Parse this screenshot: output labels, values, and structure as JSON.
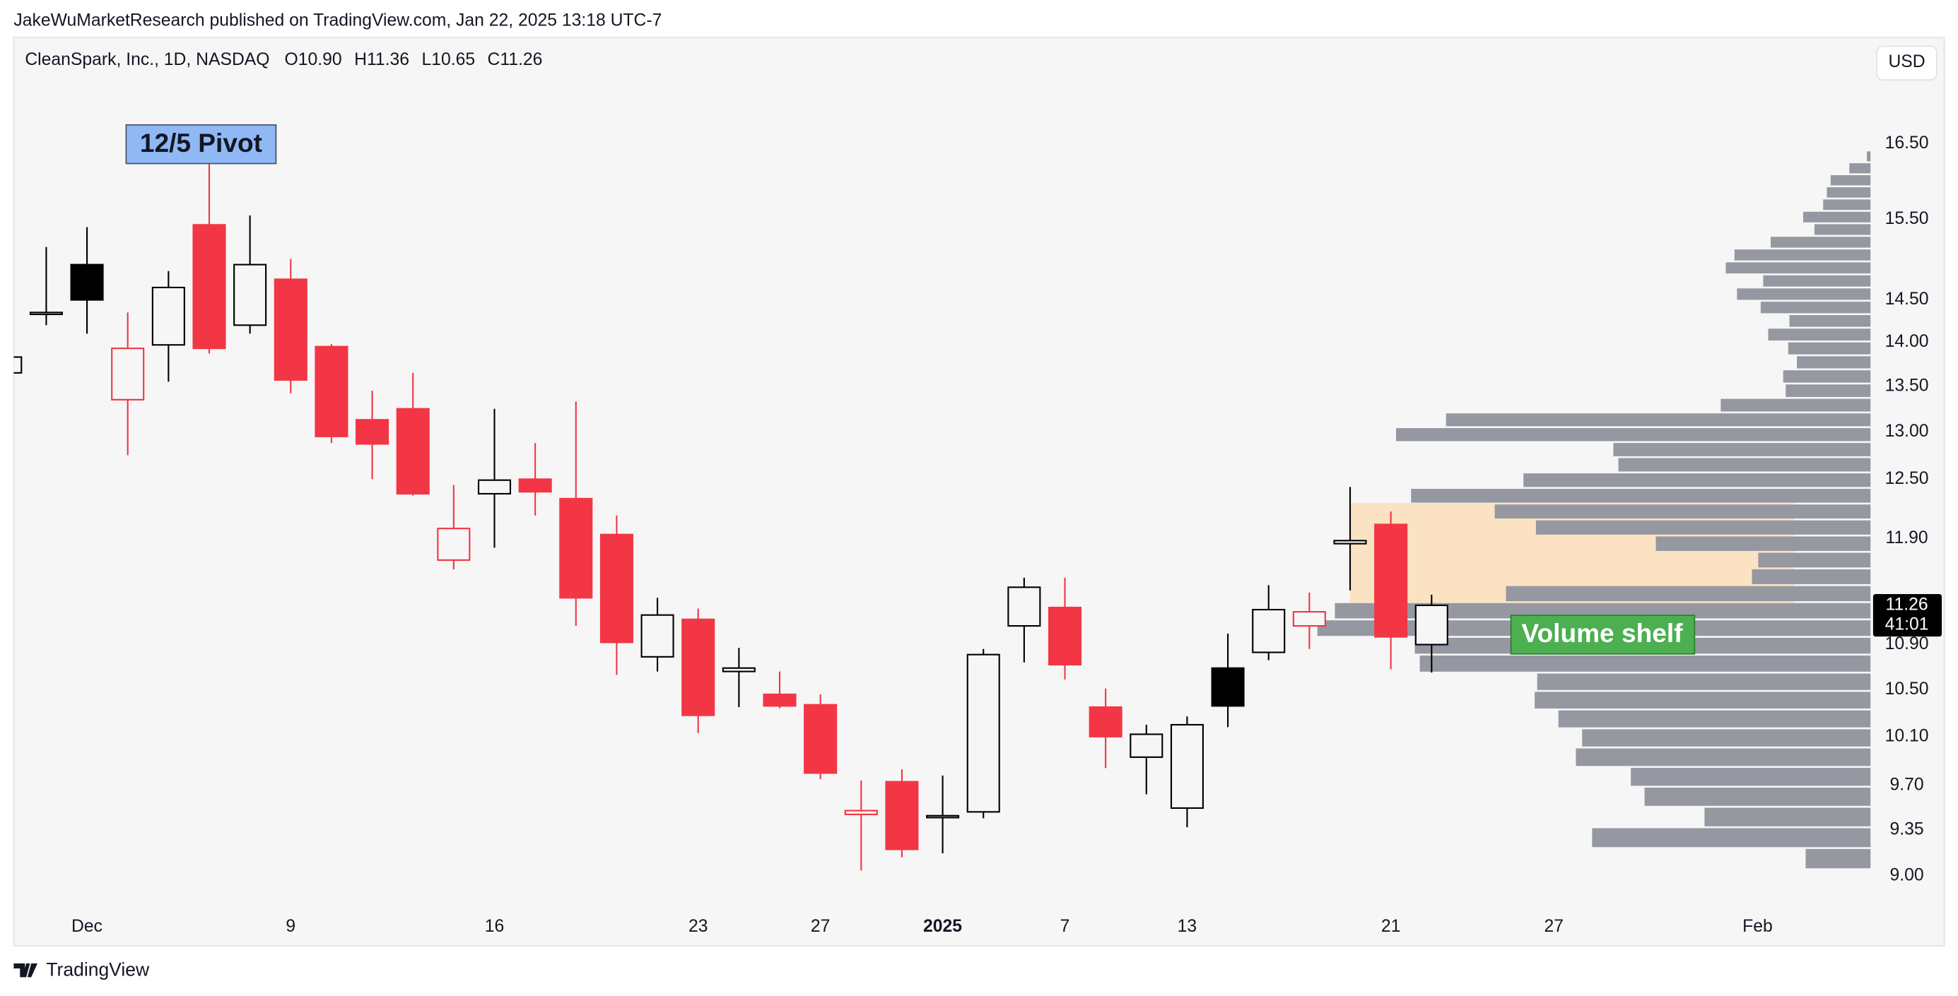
{
  "header": {
    "published": "JakeWuMarketResearch published on TradingView.com, Jan 22, 2025 13:18 UTC-7"
  },
  "chart_data": {
    "type": "candlestick",
    "title": "CleanSpark, Inc., 1D, NASDAQ",
    "ohlc_legend": [
      {
        "key": "O",
        "value": "10.90"
      },
      {
        "key": "H",
        "value": "11.36"
      },
      {
        "key": "L",
        "value": "10.65"
      },
      {
        "key": "C",
        "value": "11.26"
      }
    ],
    "currency": "USD",
    "categories": [
      null,
      null,
      "Dec",
      null,
      null,
      null,
      null,
      "9",
      null,
      null,
      null,
      null,
      "16",
      null,
      null,
      null,
      null,
      "23",
      null,
      null,
      "27",
      null,
      null,
      "2025",
      null,
      null,
      "7",
      null,
      null,
      "13",
      null,
      null,
      null,
      null,
      "21",
      null,
      null,
      null,
      "27",
      null,
      null,
      null,
      null,
      "Feb"
    ],
    "open": [
      13.65,
      14.33,
      14.93,
      13.35,
      13.97,
      15.43,
      14.2,
      14.75,
      13.95,
      13.13,
      13.25,
      11.69,
      12.35,
      12.5,
      12.3,
      11.94,
      10.79,
      11.13,
      10.66,
      10.46,
      10.37,
      9.47,
      9.73,
      9.45,
      9.49,
      11.07,
      11.24,
      10.35,
      9.93,
      9.52,
      10.69,
      10.83,
      11.07,
      11.85,
      12.04,
      10.9,
      null,
      null,
      null,
      null,
      null,
      null,
      null,
      null
    ],
    "high": [
      13.85,
      15.15,
      15.4,
      14.35,
      14.85,
      16.23,
      15.55,
      15.0,
      13.98,
      13.45,
      13.65,
      12.44,
      13.25,
      12.88,
      13.33,
      12.13,
      11.33,
      11.23,
      10.87,
      10.66,
      10.46,
      9.74,
      9.83,
      9.78,
      10.86,
      11.52,
      11.52,
      10.51,
      10.2,
      10.27,
      11.0,
      11.45,
      11.38,
      12.42,
      12.17,
      11.36,
      null,
      null,
      null,
      null,
      null,
      null,
      null,
      null
    ],
    "low": [
      13.63,
      14.2,
      14.1,
      12.75,
      13.55,
      13.87,
      14.1,
      13.42,
      12.88,
      12.5,
      12.33,
      11.6,
      11.81,
      12.13,
      11.07,
      10.63,
      10.66,
      10.13,
      10.35,
      10.34,
      9.75,
      9.04,
      9.14,
      9.17,
      9.44,
      10.74,
      10.59,
      9.84,
      9.63,
      9.37,
      10.18,
      10.76,
      10.86,
      11.4,
      10.68,
      10.65,
      null,
      null,
      null,
      null,
      null,
      null,
      null,
      null
    ],
    "close": [
      13.83,
      14.35,
      14.5,
      13.93,
      14.65,
      13.93,
      14.93,
      13.57,
      12.95,
      12.87,
      12.35,
      12.0,
      12.49,
      12.37,
      11.33,
      10.92,
      11.17,
      10.28,
      10.69,
      10.36,
      9.8,
      9.5,
      9.2,
      9.46,
      10.81,
      11.43,
      10.72,
      10.1,
      10.12,
      10.2,
      10.36,
      11.22,
      11.2,
      11.88,
      10.97,
      11.26,
      null,
      null,
      null,
      null,
      null,
      null,
      null,
      null
    ],
    "up_color": "#000000",
    "down_color": "#f23645",
    "ylim": [
      8.76,
      18.0
    ],
    "log_scale": true,
    "yticks": [
      {
        "value": 16.5,
        "label": "16.50"
      },
      {
        "value": 15.5,
        "label": "15.50"
      },
      {
        "value": 14.5,
        "label": "14.50"
      },
      {
        "value": 14,
        "label": "14.00"
      },
      {
        "value": 13.5,
        "label": "13.50"
      },
      {
        "value": 13,
        "label": "13.00"
      },
      {
        "value": 12.5,
        "label": "12.50"
      },
      {
        "value": 11.9,
        "label": "11.90"
      },
      {
        "value": 10.9,
        "label": "10.90"
      },
      {
        "value": 10.5,
        "label": "10.50"
      },
      {
        "value": 10.1,
        "label": "10.10"
      },
      {
        "value": 9.7,
        "label": "9.70"
      },
      {
        "value": 9.35,
        "label": "9.35"
      },
      {
        "value": 9,
        "label": "9.00"
      }
    ],
    "grid": false,
    "last_price": {
      "value": 11.26,
      "label": "11.26"
    },
    "countdown": "41:01",
    "volume_profile": {
      "color": "#9598a1",
      "price_bins": [
        9.05,
        9.21,
        9.37,
        9.53,
        9.69,
        9.85,
        10.01,
        10.17,
        10.33,
        10.49,
        10.65,
        10.81,
        10.97,
        11.13,
        11.29,
        11.45,
        11.61,
        11.77,
        11.93,
        12.09,
        12.25,
        12.41,
        12.57,
        12.73,
        12.89,
        13.05,
        13.21,
        13.37,
        13.53,
        13.69,
        13.85,
        14.01,
        14.17,
        14.33,
        14.49,
        14.65,
        14.81,
        14.97,
        15.13,
        15.29,
        15.45,
        15.61,
        15.77,
        15.93,
        16.09,
        16.25,
        16.41
      ],
      "volumes": [
        52,
        223,
        133,
        181,
        192,
        236,
        231,
        250,
        269,
        267,
        361,
        365,
        443,
        429,
        292,
        95,
        90,
        172,
        268,
        301,
        368,
        278,
        202,
        206,
        380,
        340,
        120,
        68,
        70,
        59,
        66,
        82,
        65,
        88,
        107,
        86,
        116,
        109,
        80,
        45,
        54,
        38,
        35,
        32,
        17,
        3
      ]
    },
    "annotations": [
      {
        "text": "12/5 Pivot"
      },
      {
        "text": "Volume shelf"
      }
    ]
  },
  "footer": {
    "brand": "TradingView"
  }
}
